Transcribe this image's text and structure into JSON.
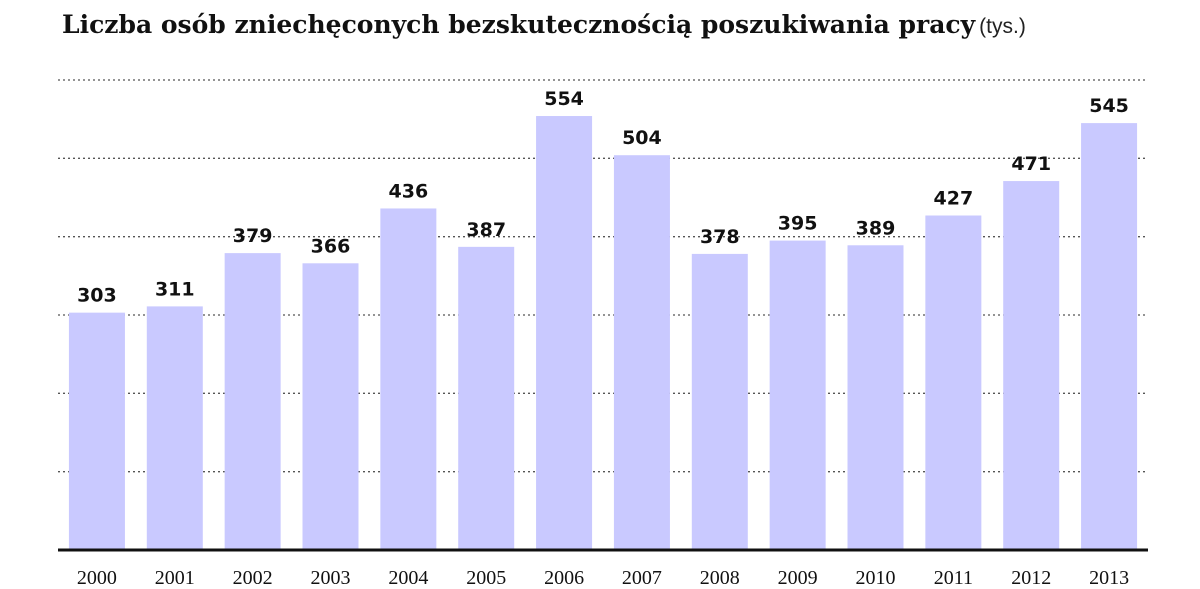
{
  "title": "Liczba osób zniechęconych bezskutecznością poszukiwania pracy",
  "unit": "(tys.)",
  "colors": {
    "bar": "#c9c9ff",
    "text": "#111111",
    "grid": "#555555"
  },
  "chart_data": {
    "type": "bar",
    "title": "Liczba osób zniechęconych bezskutecznością poszukiwania pracy",
    "unit": "(tys.)",
    "categories": [
      "2000",
      "2001",
      "2002",
      "2003",
      "2004",
      "2005",
      "2006",
      "2007",
      "2008",
      "2009",
      "2010",
      "2011",
      "2012",
      "2013"
    ],
    "values": [
      303,
      311,
      379,
      366,
      436,
      387,
      554,
      504,
      378,
      395,
      389,
      427,
      471,
      545
    ],
    "data_labels": [
      "303",
      "311",
      "379",
      "366",
      "436",
      "387",
      "554",
      "504",
      "378",
      "395",
      "389",
      "427",
      "471",
      "545"
    ],
    "ylim": [
      0,
      600
    ],
    "grid": true,
    "grid_step": 100,
    "y_tick_labels_shown": false,
    "legend": "none"
  }
}
